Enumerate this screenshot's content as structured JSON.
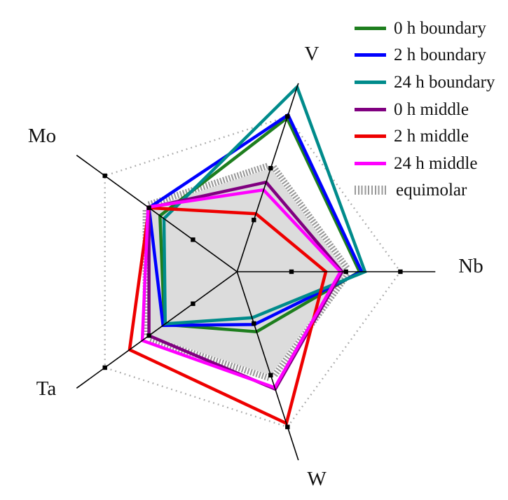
{
  "chart_data": {
    "type": "radar",
    "title": "",
    "axes": [
      {
        "label": "V",
        "angle_deg": 72
      },
      {
        "label": "Nb",
        "angle_deg": 0
      },
      {
        "label": "W",
        "angle_deg": 288
      },
      {
        "label": "Ta",
        "angle_deg": 216
      },
      {
        "label": "Mo",
        "angle_deg": 144
      }
    ],
    "value_order_note": "series values follow axes order V, Nb, W, Ta, Mo",
    "scale": {
      "center_value": 0,
      "ring_values": [
        10,
        20,
        30
      ],
      "axis_max_value": 36.4,
      "grid": "dotted pentagons at 10 and 30, tick squares at 10/20/30 on every axis"
    },
    "series": [
      {
        "name": "0 h boundary",
        "color": "#1e7e1e",
        "values": [
          29.7,
          22.5,
          11.6,
          16.5,
          17.5
        ]
      },
      {
        "name": "2 h boundary",
        "color": "#0000ff",
        "values": [
          30.3,
          22.9,
          10.2,
          16.8,
          20.0
        ]
      },
      {
        "name": "24 h boundary",
        "color": "#008b8b",
        "values": [
          35.7,
          23.5,
          8.9,
          16.3,
          16.6
        ]
      },
      {
        "name": "0 h middle",
        "color": "#800080",
        "values": [
          17.3,
          19.3,
          22.7,
          20.0,
          20.0
        ]
      },
      {
        "name": "2 h middle",
        "color": "#ee0000",
        "values": [
          11.2,
          16.3,
          29.3,
          24.4,
          20.0
        ]
      },
      {
        "name": "24 h middle",
        "color": "#ff00ff",
        "values": [
          15.8,
          19.0,
          22.4,
          21.5,
          20.2
        ]
      }
    ],
    "reference": {
      "name": "equimolar",
      "values": [
        20,
        20,
        20,
        20,
        20
      ],
      "fill": "#dcdcdc",
      "hatch_color": "#999999"
    },
    "legend": {
      "position": "top-right",
      "entries": [
        {
          "label": "0 h boundary",
          "swatch": "line"
        },
        {
          "label": "2 h boundary",
          "swatch": "line"
        },
        {
          "label": "24 h boundary",
          "swatch": "line"
        },
        {
          "label": "0 h middle",
          "swatch": "line"
        },
        {
          "label": "2 h middle",
          "swatch": "line"
        },
        {
          "label": "24 h middle",
          "swatch": "line"
        },
        {
          "label": "equimolar",
          "swatch": "hatch"
        }
      ]
    },
    "colors": {
      "axis": "#000000",
      "dotted_ring": "#a9a9a9",
      "reference_fill": "#dcdcdc",
      "reference_hatch": "#999999",
      "text": "#111111",
      "background": "#ffffff"
    }
  }
}
